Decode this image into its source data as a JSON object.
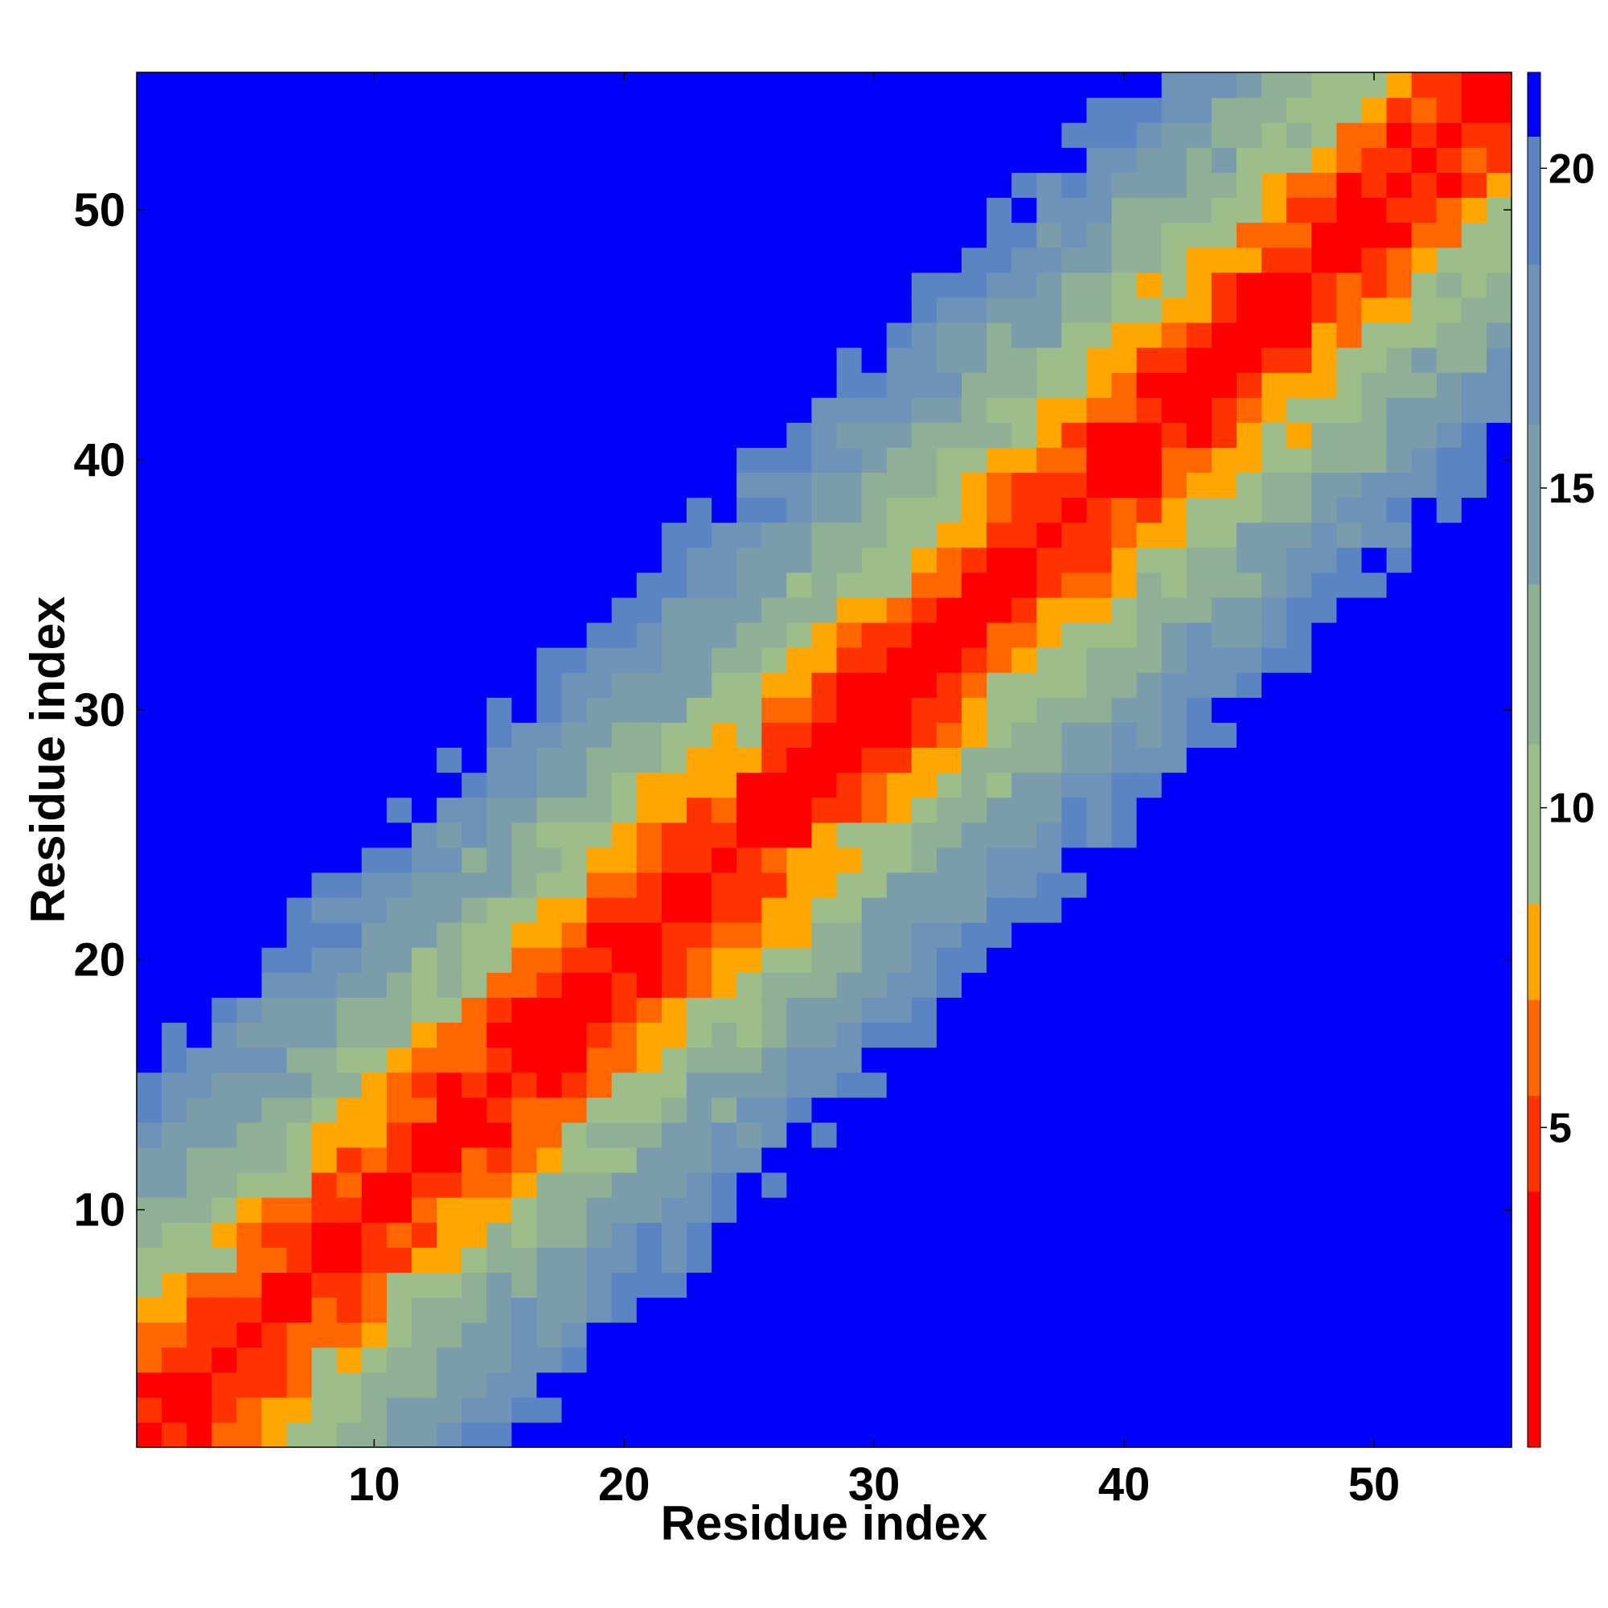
{
  "chart_data": {
    "type": "heatmap",
    "title": "",
    "xlabel": "Residue index",
    "ylabel": "Residue index",
    "n": 55,
    "xlim": [
      0.5,
      55.5
    ],
    "ylim": [
      0.5,
      55.5
    ],
    "x_ticks": [
      10,
      20,
      30,
      40,
      50
    ],
    "y_ticks": [
      10,
      20,
      30,
      40,
      50
    ],
    "x_tick_labels": [
      "10",
      "20",
      "30",
      "40",
      "50"
    ],
    "y_tick_labels": [
      "10",
      "20",
      "30",
      "40",
      "50"
    ],
    "colorbar": {
      "range": [
        0,
        21.5
      ],
      "ticks": [
        5,
        10,
        15,
        20
      ],
      "tick_labels": [
        "5",
        "10",
        "15",
        "20"
      ],
      "color_stops": [
        {
          "max": 4.0,
          "color": "#ff0000"
        },
        {
          "max": 5.5,
          "color": "#ff3300"
        },
        {
          "max": 7.0,
          "color": "#ff6600"
        },
        {
          "max": 8.5,
          "color": "#ffa500"
        },
        {
          "max": 11.0,
          "color": "#9dbd8a"
        },
        {
          "max": 13.5,
          "color": "#8fb095"
        },
        {
          "max": 16.0,
          "color": "#7b9dab"
        },
        {
          "max": 18.5,
          "color": "#6f93b8"
        },
        {
          "max": 20.5,
          "color": "#5b85c2"
        },
        {
          "max": 99.0,
          "color": "#0000ff"
        }
      ]
    },
    "value_formula": "distance(i,j) ≈ min(21.5, 1.25*|i-j| + 2.2 + structured variation); estimated from colors",
    "grid": false
  }
}
